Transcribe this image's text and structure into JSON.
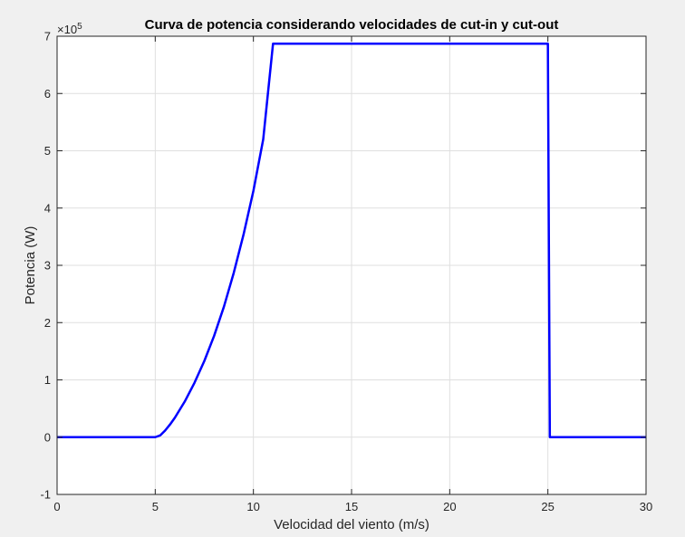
{
  "chart_data": {
    "type": "line",
    "title": "Curva de potencia considerando velocidades de cut-in y cut-out",
    "xlabel": "Velocidad del viento (m/s)",
    "ylabel": "Potencia (W)",
    "xlim": [
      0,
      30
    ],
    "ylim": [
      -100000,
      700000
    ],
    "xticks": [
      0,
      5,
      10,
      15,
      20,
      25,
      30
    ],
    "xtick_labels": [
      "0",
      "5",
      "10",
      "15",
      "20",
      "25",
      "30"
    ],
    "yticks": [
      -100000,
      0,
      100000,
      200000,
      300000,
      400000,
      500000,
      600000,
      700000
    ],
    "ytick_labels": [
      "-1",
      "0",
      "1",
      "2",
      "3",
      "4",
      "5",
      "6",
      "7"
    ],
    "y_exponent": "×10",
    "y_exponent_power": "5",
    "grid": true,
    "series": [
      {
        "color": "#0000ff",
        "x": [
          0,
          5,
          5.25,
          5.5,
          5.75,
          6,
          6.5,
          7,
          7.5,
          8,
          8.5,
          9,
          9.5,
          10,
          10.5,
          11,
          24.9,
          25,
          25.1,
          30
        ],
        "y": [
          0,
          0,
          3000,
          11500,
          22000,
          34000,
          62000,
          95000,
          133000,
          177000,
          228000,
          287000,
          354000,
          430000,
          520000,
          687000,
          687000,
          687000,
          0,
          0
        ]
      }
    ]
  }
}
